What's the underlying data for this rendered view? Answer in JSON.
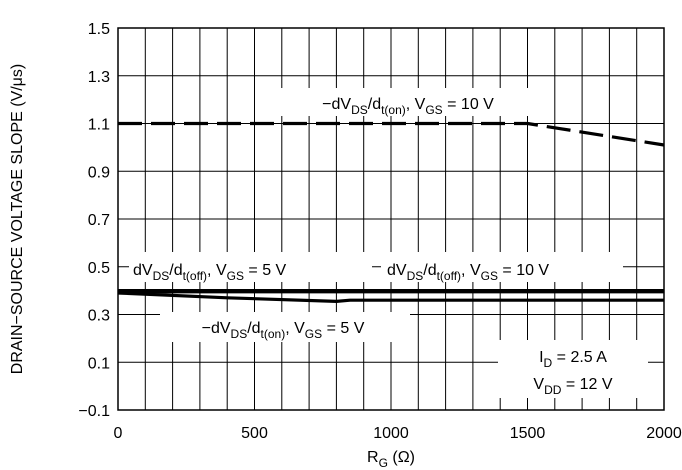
{
  "chart_data": {
    "type": "line",
    "xlabel": {
      "main": "R",
      "sub": "G",
      "tail": " (Ω)"
    },
    "ylabel": "DRAIN−SOURCE VOLTAGE SLOPE (V/μs)",
    "xlim": [
      0,
      2000
    ],
    "ylim": [
      -0.1,
      1.5
    ],
    "x_ticks": [
      {
        "value": 0,
        "label": "0"
      },
      {
        "value": 500,
        "label": "500"
      },
      {
        "value": 1000,
        "label": "1000"
      },
      {
        "value": 1500,
        "label": "1500"
      },
      {
        "value": 2000,
        "label": "2000"
      }
    ],
    "y_ticks": [
      {
        "value": -0.1,
        "label": "−0.1"
      },
      {
        "value": 0.1,
        "label": "0.1"
      },
      {
        "value": 0.3,
        "label": "0.3"
      },
      {
        "value": 0.5,
        "label": "0.5"
      },
      {
        "value": 0.7,
        "label": "0.7"
      },
      {
        "value": 0.9,
        "label": "0.9"
      },
      {
        "value": 1.1,
        "label": "1.1"
      },
      {
        "value": 1.3,
        "label": "1.3"
      },
      {
        "value": 1.5,
        "label": "1.5"
      }
    ],
    "x_grid": [
      0,
      100,
      200,
      300,
      400,
      500,
      600,
      700,
      800,
      900,
      1000,
      1100,
      1200,
      1300,
      1400,
      1500,
      1600,
      1700,
      1800,
      1900,
      2000
    ],
    "y_grid": [
      -0.1,
      0.1,
      0.3,
      0.5,
      0.7,
      0.9,
      1.1,
      1.3,
      1.5
    ],
    "grid": true,
    "series": [
      {
        "label_parts": [
          [
            "−dV",
            ""
          ],
          [
            "DS",
            "sub"
          ],
          [
            "/d",
            ""
          ],
          [
            "t(on)",
            "sub"
          ],
          [
            ", V",
            ""
          ],
          [
            "GS",
            "sub"
          ],
          [
            " = 10 V",
            ""
          ]
        ],
        "style": "dashed",
        "x": [
          0,
          500,
          1000,
          1500,
          2000
        ],
        "y": [
          1.1,
          1.1,
          1.1,
          1.1,
          1.01
        ]
      },
      {
        "label_parts": [
          [
            "dV",
            ""
          ],
          [
            "DS",
            "sub"
          ],
          [
            "/d",
            ""
          ],
          [
            "t(off)",
            "sub"
          ],
          [
            ", V",
            ""
          ],
          [
            "GS",
            "sub"
          ],
          [
            " = 5 V",
            ""
          ]
        ],
        "style": "solid",
        "x": [
          0,
          500,
          1000,
          1500,
          2000
        ],
        "y": [
          0.395,
          0.395,
          0.395,
          0.395,
          0.395
        ]
      },
      {
        "label_parts": [
          [
            "dV",
            ""
          ],
          [
            "DS",
            "sub"
          ],
          [
            "/d",
            ""
          ],
          [
            "t(off)",
            "sub"
          ],
          [
            ", V",
            ""
          ],
          [
            "GS",
            "sub"
          ],
          [
            " = 10 V",
            ""
          ]
        ],
        "style": "solid",
        "x": [
          0,
          500,
          1000,
          1500,
          2000
        ],
        "y": [
          0.4,
          0.4,
          0.4,
          0.4,
          0.4
        ]
      },
      {
        "label_parts": [
          [
            "−dV",
            ""
          ],
          [
            "DS",
            "sub"
          ],
          [
            "/d",
            ""
          ],
          [
            "t(on)",
            "sub"
          ],
          [
            ", V",
            ""
          ],
          [
            "GS",
            "sub"
          ],
          [
            " = 5 V",
            ""
          ]
        ],
        "style": "solid",
        "x": [
          0,
          400,
          800,
          850,
          1200,
          1600,
          2000
        ],
        "y": [
          0.39,
          0.37,
          0.355,
          0.36,
          0.36,
          0.36,
          0.36
        ]
      }
    ],
    "conditions": [
      [
        [
          "I",
          ""
        ],
        [
          "D",
          "sub"
        ],
        [
          " = 2.5 A",
          ""
        ]
      ],
      [
        [
          "V",
          ""
        ],
        [
          "DD",
          "sub"
        ],
        [
          " = 12 V",
          ""
        ]
      ]
    ]
  }
}
